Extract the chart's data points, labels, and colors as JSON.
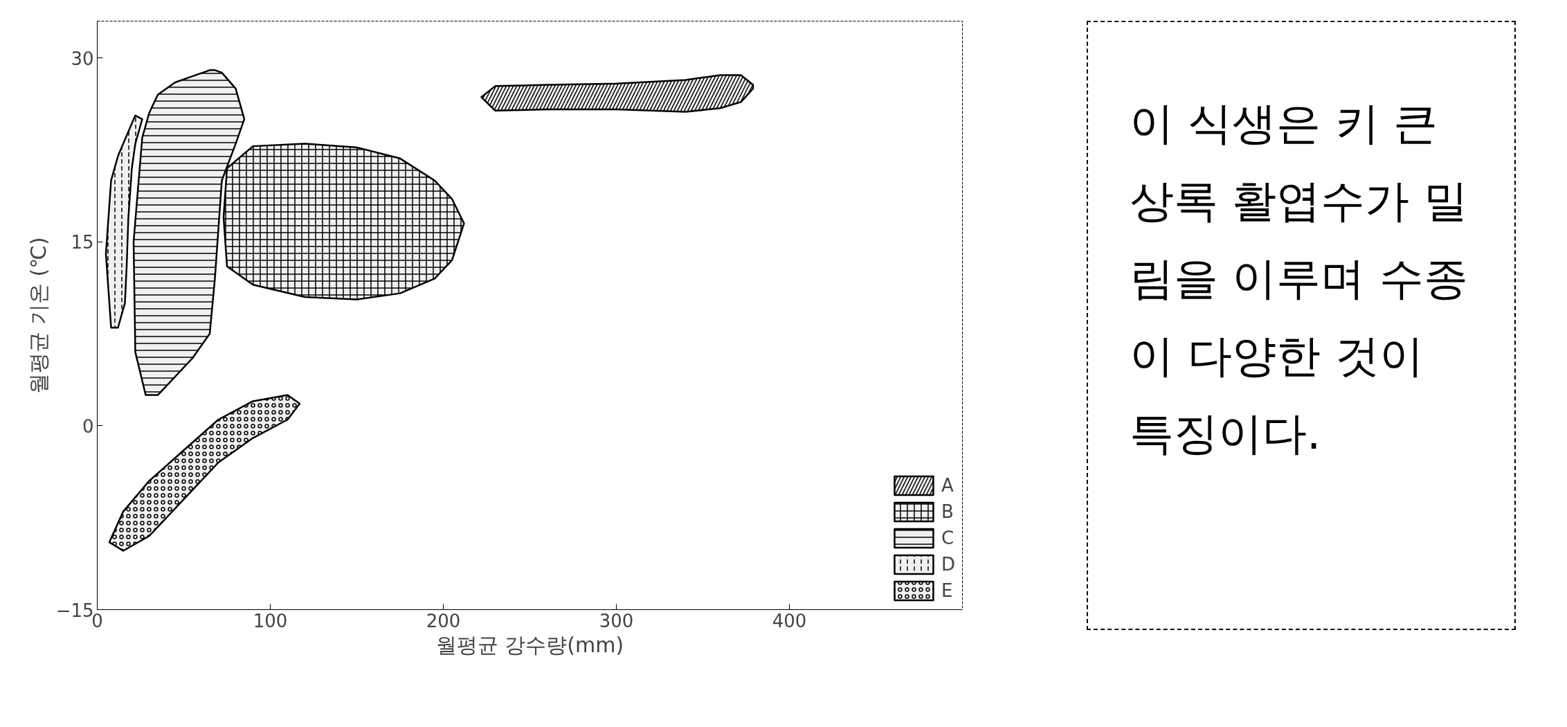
{
  "chart_data": {
    "type": "area",
    "xlabel": "월평균 강수량(mm)",
    "ylabel": "월평균 기온 (℃)",
    "xlim": [
      0,
      500
    ],
    "ylim": [
      -15,
      33
    ],
    "xticks": [
      0,
      100,
      200,
      300,
      400
    ],
    "yticks": [
      -15,
      0,
      15,
      30
    ],
    "legend": "bottom right",
    "series": [
      {
        "name": "A",
        "type": "area",
        "color": "#000000",
        "x": [
          222,
          230,
          260,
          300,
          340,
          360,
          372,
          379,
          379,
          372,
          360,
          340,
          300,
          260,
          230
        ],
        "values": [
          26.8,
          25.7,
          25.8,
          25.8,
          25.6,
          25.9,
          26.4,
          27.5,
          27.8,
          28.6,
          28.6,
          28.2,
          27.9,
          27.8,
          27.7
        ]
      },
      {
        "name": "B",
        "type": "area",
        "color": "#000000",
        "x": [
          73,
          75,
          90,
          120,
          150,
          175,
          195,
          205,
          212,
          205,
          195,
          175,
          150,
          120,
          90,
          75
        ],
        "values": [
          17,
          13,
          11.5,
          10.5,
          10.3,
          10.8,
          12,
          13.5,
          16.5,
          18.5,
          20,
          21.8,
          22.7,
          23,
          22.8,
          21
        ]
      },
      {
        "name": "C",
        "type": "area",
        "color": "#000000",
        "x": [
          21,
          22,
          28,
          35,
          45,
          55,
          65,
          68,
          72,
          80,
          85,
          80,
          72,
          68,
          65,
          55,
          45,
          35,
          30,
          26
        ],
        "values": [
          15,
          6,
          2.5,
          2.5,
          4,
          5.5,
          7.5,
          12,
          20,
          23,
          25,
          27.5,
          28.8,
          29,
          29,
          28.5,
          28,
          27,
          25.5,
          23.5
        ]
      },
      {
        "name": "D",
        "type": "area",
        "color": "#000000",
        "x": [
          5,
          8,
          12,
          16,
          17,
          18,
          20,
          22,
          26,
          22,
          18,
          12,
          8
        ],
        "values": [
          14,
          8,
          8,
          10,
          13,
          17,
          21,
          23,
          25,
          25.3,
          24,
          22,
          20
        ]
      },
      {
        "name": "E",
        "type": "area",
        "color": "#000000",
        "x": [
          7,
          15,
          30,
          50,
          70,
          90,
          110,
          117,
          110,
          90,
          70,
          50,
          30,
          15
        ],
        "values": [
          -9.5,
          -10.2,
          -9,
          -6,
          -3,
          -1,
          0.5,
          1.8,
          2.5,
          2,
          0.5,
          -2,
          -4.5,
          -7
        ]
      }
    ],
    "annotations": [
      "이 식생은 키 큰 상록 활엽수가 밀림을 이루며 수종이 다양한 것이 특징이다."
    ]
  }
}
